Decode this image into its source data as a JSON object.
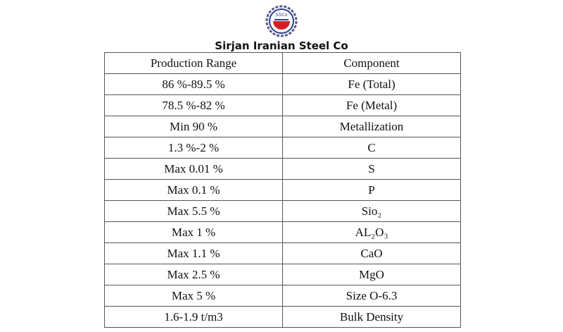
{
  "logo": {
    "text": "SiSCo"
  },
  "header": {
    "title": "Sirjan Iranian Steel Co"
  },
  "table": {
    "columns": [
      "Production Range",
      "Component"
    ],
    "rows": [
      [
        "86 %-89.5 %",
        "Fe (Total)"
      ],
      [
        "78.5 %-82 %",
        "Fe (Metal)"
      ],
      [
        "Min 90 %",
        "Metallization"
      ],
      [
        "1.3 %-2 %",
        "C"
      ],
      [
        "Max 0.01 %",
        "S"
      ],
      [
        "Max 0.1 %",
        "P"
      ],
      [
        "Max 5.5 %",
        "Sio₂"
      ],
      [
        "Max 1 %",
        "AL₂O₃"
      ],
      [
        "Max 1.1 %",
        "CaO"
      ],
      [
        "Max 2.5 %",
        "MgO"
      ],
      [
        "Max 5 %",
        "Size O-6.3"
      ],
      [
        "1.6-1.9 t/m3",
        "Bulk Density"
      ]
    ]
  }
}
